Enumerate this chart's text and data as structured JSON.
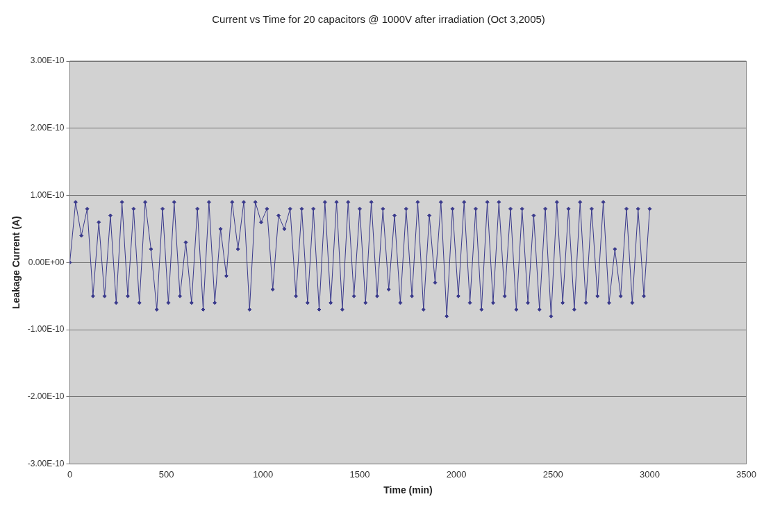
{
  "chart_data": {
    "type": "line",
    "title": "Current vs Time for 20 capacitors @ 1000V after irradiation (Oct 3,2005)",
    "xlabel": "Time (min)",
    "ylabel": "Leakage Current (A)",
    "x": [
      0,
      30,
      60,
      90,
      120,
      150,
      180,
      210,
      240,
      270,
      300,
      330,
      360,
      390,
      420,
      450,
      480,
      510,
      540,
      570,
      600,
      630,
      660,
      690,
      720,
      750,
      780,
      810,
      840,
      870,
      900,
      930,
      960,
      990,
      1020,
      1050,
      1080,
      1110,
      1140,
      1170,
      1200,
      1230,
      1260,
      1290,
      1320,
      1350,
      1380,
      1410,
      1440,
      1470,
      1500,
      1530,
      1560,
      1590,
      1620,
      1650,
      1680,
      1710,
      1740,
      1770,
      1800,
      1830,
      1860,
      1890,
      1920,
      1950,
      1980,
      2010,
      2040,
      2070,
      2100,
      2130,
      2160,
      2190,
      2220,
      2250,
      2280,
      2310,
      2340,
      2370,
      2400,
      2430,
      2460,
      2490,
      2520,
      2550,
      2580,
      2610,
      2640,
      2670,
      2700,
      2730,
      2760,
      2790,
      2820,
      2850,
      2880,
      2910,
      2940,
      2970,
      3000
    ],
    "series": [
      {
        "color": "#3a3a8c",
        "values": [
          0,
          9e-11,
          4e-11,
          8e-11,
          -5e-11,
          6e-11,
          -5e-11,
          7e-11,
          -6e-11,
          9e-11,
          -5e-11,
          8e-11,
          -6e-11,
          9e-11,
          2e-11,
          -7e-11,
          8e-11,
          -6e-11,
          9e-11,
          -5e-11,
          3e-11,
          -6e-11,
          8e-11,
          -7e-11,
          9e-11,
          -6e-11,
          5e-11,
          -2e-11,
          9e-11,
          2e-11,
          9e-11,
          -7e-11,
          9e-11,
          6e-11,
          8e-11,
          -4e-11,
          7e-11,
          5e-11,
          8e-11,
          -5e-11,
          8e-11,
          -6e-11,
          8e-11,
          -7e-11,
          9e-11,
          -6e-11,
          9e-11,
          -7e-11,
          9e-11,
          -5e-11,
          8e-11,
          -6e-11,
          9e-11,
          -5e-11,
          8e-11,
          -4e-11,
          7e-11,
          -6e-11,
          8e-11,
          -5e-11,
          9e-11,
          -7e-11,
          7e-11,
          -3e-11,
          9e-11,
          -8e-11,
          8e-11,
          -5e-11,
          9e-11,
          -6e-11,
          8e-11,
          -7e-11,
          9e-11,
          -6e-11,
          9e-11,
          -5e-11,
          8e-11,
          -7e-11,
          8e-11,
          -6e-11,
          7e-11,
          -7e-11,
          8e-11,
          -8e-11,
          9e-11,
          -6e-11,
          8e-11,
          -7e-11,
          9e-11,
          -6e-11,
          8e-11,
          -5e-11,
          9e-11,
          -6e-11,
          2e-11,
          -5e-11,
          8e-11,
          -6e-11,
          8e-11,
          -5e-11,
          8e-11
        ]
      }
    ],
    "xlim": [
      0,
      3500
    ],
    "xticks": [
      0,
      500,
      1000,
      1500,
      2000,
      2500,
      3000,
      3500
    ],
    "ylim": [
      -3e-10,
      3e-10
    ],
    "yticks": [
      {
        "value": -3e-10,
        "label": "-3.00E-10"
      },
      {
        "value": -2e-10,
        "label": "-2.00E-10"
      },
      {
        "value": -1e-10,
        "label": "-1.00E-10"
      },
      {
        "value": 0,
        "label": "0.00E+00"
      },
      {
        "value": 1e-10,
        "label": "1.00E-10"
      },
      {
        "value": 2e-10,
        "label": "2.00E-10"
      },
      {
        "value": 3e-10,
        "label": "3.00E-10"
      }
    ],
    "grid": "y",
    "legend": false,
    "marker": "diamond",
    "line_style": "solid"
  }
}
